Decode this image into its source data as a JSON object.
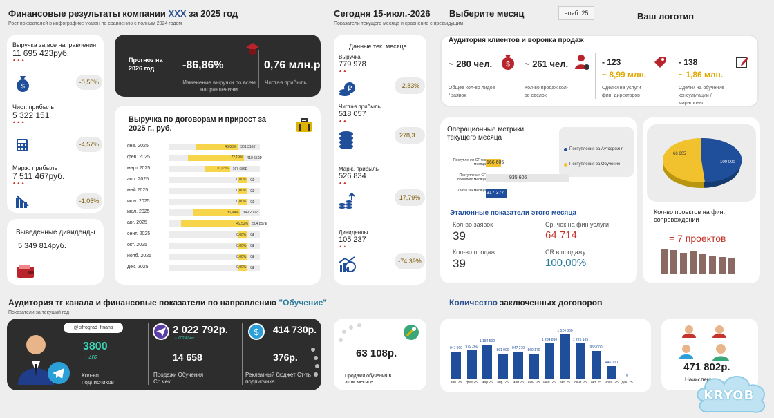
{
  "header": {
    "title_prefix": "Финансовые результаты компании ",
    "title_company": "XXX",
    "title_suffix": " за 2025 год",
    "subtitle": "Рост показателей в инфографике указан по сравнению с полным 2024 годом",
    "today": "Сегодня 15-июл.-2026",
    "today_sub": "Показатели текущего месяца и сравнение с предыдущим",
    "choose_month": "Выберите месяц",
    "month_value": "нояб. 25",
    "logo": "Ваш логотип"
  },
  "left_stats": [
    {
      "label": "Выручка за все направления",
      "value": "11 695 423руб.",
      "delta": "-0,56%"
    },
    {
      "label": "Чист. прибыль",
      "value": "5 322 151",
      "delta": "-4,57%"
    },
    {
      "label": "Марж. прибыль",
      "value": "7 511 467руб.",
      "delta": "-1,05%"
    }
  ],
  "dividends": {
    "label": "Выведенные дивиденды",
    "value": "5 349 814руб."
  },
  "forecast": {
    "label": "Прогноз на 2026 год",
    "change_value": "-86,86%",
    "change_label": "Изменение выручки по всем направлениям",
    "profit_value": "0,76 млн.р",
    "profit_label": "Чистая прибыль"
  },
  "contracts": {
    "title": "Выручка по договорам и прирост за 2025 г., руб.",
    "rows": [
      {
        "month": "янв. 2025",
        "pct": "46,60%",
        "value": "301 310₽",
        "fill": 0.466
      },
      {
        "month": "фев. 2025",
        "pct": "72,19%",
        "value": "410 550₽",
        "fill": 0.62
      },
      {
        "month": "март 2025",
        "pct": "10,03%",
        "value": "167 686₽",
        "fill": 0.27
      },
      {
        "month": "апр. 2025",
        "pct": "0,00%",
        "value": "0₽",
        "fill": 0
      },
      {
        "month": "май 2025",
        "pct": "0,00%",
        "value": "0₽",
        "fill": 0
      },
      {
        "month": "июн. 2025",
        "pct": "0,00%",
        "value": "0₽",
        "fill": 0
      },
      {
        "month": "июл. 2025",
        "pct": "36,94%",
        "value": "349 200₽",
        "fill": 0.52
      },
      {
        "month": "авг. 2025",
        "pct": "49,52%",
        "value": "504 857₽",
        "fill": 0.75
      },
      {
        "month": "сент. 2025",
        "pct": "0,00%",
        "value": "0₽",
        "fill": 0
      },
      {
        "month": "окт. 2025",
        "pct": "0,00%",
        "value": "0₽",
        "fill": 0
      },
      {
        "month": "нояб. 2025",
        "pct": "0,00%",
        "value": "0₽",
        "fill": 0
      },
      {
        "month": "дек. 2025",
        "pct": "0,00%",
        "value": "0₽",
        "fill": 0
      }
    ]
  },
  "month_data": {
    "title": "Данные тек. месяца",
    "items": [
      {
        "label": "Выручка",
        "value": "779 978",
        "delta": "-2,83%"
      },
      {
        "label": "Чистая прибыль",
        "value": "518 057",
        "delta": "278,3..."
      },
      {
        "label": "Марж. прибыль",
        "value": "526 834",
        "delta": "17,79%"
      },
      {
        "label": "Дивиденды",
        "value": "105 237",
        "delta": "-74,39%"
      }
    ]
  },
  "audience": {
    "title": "Аудитория клиентов и воронка продаж",
    "items": [
      {
        "value": "~ 280 чел.",
        "label": "Общее кол-во лидов / заявок"
      },
      {
        "value": "~ 261 чел.",
        "label": "Кол-во продаж кол-во сделок"
      },
      {
        "value": "- 123",
        "value2": "~ 8,99 млн.",
        "label": "Сделки на услуги фин. директоров"
      },
      {
        "value": "- 138",
        "value2": "~ 1,86 млн.",
        "label": "Сделки на обучение консультации / марафоны"
      }
    ]
  },
  "ops": {
    "title": "Операционные метрики текущего месяца",
    "bars": [
      {
        "label": "Поступления CF тек месяца",
        "value": "166 605"
      },
      {
        "label": "Поступления CF прошлого месяца",
        "value": "935 606"
      },
      {
        "label": "Траты тек месяца",
        "value": "317 377"
      }
    ],
    "legend": [
      "Поступления за Аутсорсинг",
      "Поступления за Обучение"
    ]
  },
  "pie": {
    "values": [
      "66 605",
      "100 000"
    ],
    "colors": [
      "#f2c12e",
      "#1f4e9a"
    ]
  },
  "projects": {
    "label": "Кол-во проектов на фин. сопровождении",
    "value": "= 7 проектов"
  },
  "benchmarks": {
    "title": "Эталонные показатели этого месяца",
    "items": [
      {
        "label": "Кол-во заявок",
        "value": "39"
      },
      {
        "label": "Ср. чек на фин услуги",
        "value": "64 714"
      },
      {
        "label": "Кол-во продаж",
        "value": "39"
      },
      {
        "label": "CR в продажу",
        "value": "100,00%"
      }
    ]
  },
  "tg": {
    "title_prefix": "Аудитория тг канала и финансовые показатели по направлению ",
    "title_accent": "\"Обучение\"",
    "subtitle": "Показатели за текущий год",
    "handle": "@cifrograd_finans",
    "subscribers": "3800",
    "subs_delta": "↑ 402",
    "subs_label": "Кол-во подписчиков",
    "sales": "2 022 792р.",
    "sales_small": "▲ 002 ₽/мес",
    "avg_check": "14 658",
    "sales_label": "Продажи Обучения Ср чек",
    "budget": "414 730р.",
    "cost": "376р.",
    "budget_label": "Рекламный бюджет Ст-ть подписчика"
  },
  "month_sales": {
    "value": "63 108р.",
    "label": "Продажи обучения в этом месяце"
  },
  "contracts_count": {
    "title_accent": "Количество",
    "title_rest": " заключенных договоров",
    "chart_data": {
      "type": "bar",
      "categories": [
        "янв. 25",
        "фев 25",
        "мар 25",
        "апр. 25",
        "май 25",
        "июн. 25",
        "июл. 25",
        "авг. 25",
        "сент. 25",
        "окт. 25",
        "нояб. 25",
        "дек. 25"
      ],
      "values": [
        947900,
        979260,
        1184500,
        861900,
        947270,
        869170,
        1234830,
        1524830,
        1225165,
        955000,
        446100,
        0
      ],
      "labels": [
        "947 900",
        "979 260",
        "1 184 500",
        "861 900",
        "947 270",
        "869 170",
        "1 234 830",
        "1 524 830",
        "1 225 165",
        "955 000",
        "446 100",
        "0"
      ]
    }
  },
  "clients": {
    "value": "471 802р.",
    "label": "Начислени"
  },
  "watermark": "KRYOB"
}
